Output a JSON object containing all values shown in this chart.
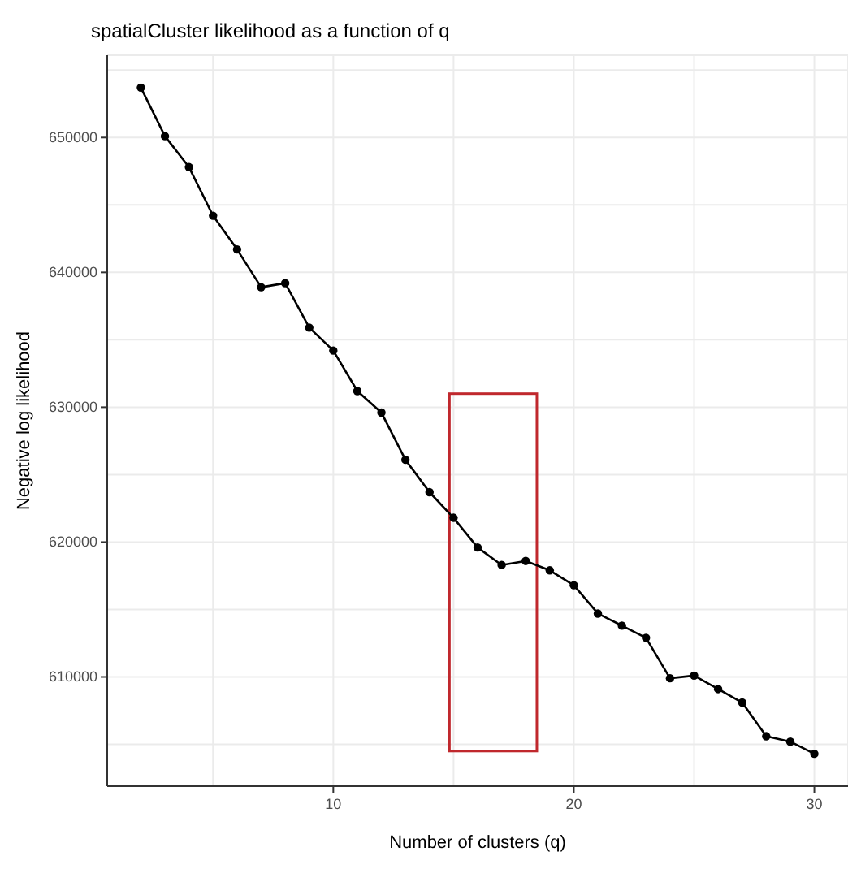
{
  "chart_data": {
    "type": "line",
    "title": "spatialCluster likelihood as a function of q",
    "xlabel": "Number of clusters (q)",
    "ylabel": "Negative log likelihood",
    "x": [
      2,
      3,
      4,
      5,
      6,
      7,
      8,
      9,
      10,
      11,
      12,
      13,
      14,
      15,
      16,
      17,
      18,
      19,
      20,
      21,
      22,
      23,
      24,
      25,
      26,
      27,
      28,
      29,
      30
    ],
    "series": [
      {
        "color": "#000000",
        "values": [
          653700,
          650100,
          647800,
          644200,
          641700,
          638900,
          639200,
          635900,
          634200,
          631200,
          629600,
          626100,
          623700,
          621800,
          619600,
          618300,
          618600,
          617900,
          616800,
          614700,
          613800,
          612900,
          609900,
          610100,
          609100,
          608100,
          605600,
          605200,
          604300
        ]
      }
    ],
    "xlim": [
      0.6,
      31.4
    ],
    "ylim": [
      601900,
      656100
    ],
    "xticks": [
      {
        "value": 5,
        "label": null
      },
      10,
      {
        "value": 15,
        "label": null
      },
      20,
      {
        "value": 25,
        "label": null
      },
      30
    ],
    "yticks": [
      {
        "value": 605000,
        "label": null
      },
      610000,
      {
        "value": 615000,
        "label": null
      },
      620000,
      {
        "value": 625000,
        "label": null
      },
      630000,
      {
        "value": 635000,
        "label": null
      },
      640000,
      {
        "value": 645000,
        "label": null
      },
      650000,
      {
        "value": 655000,
        "label": null
      }
    ],
    "grid": true,
    "marker": "circle",
    "line_style": "solid"
  }
}
